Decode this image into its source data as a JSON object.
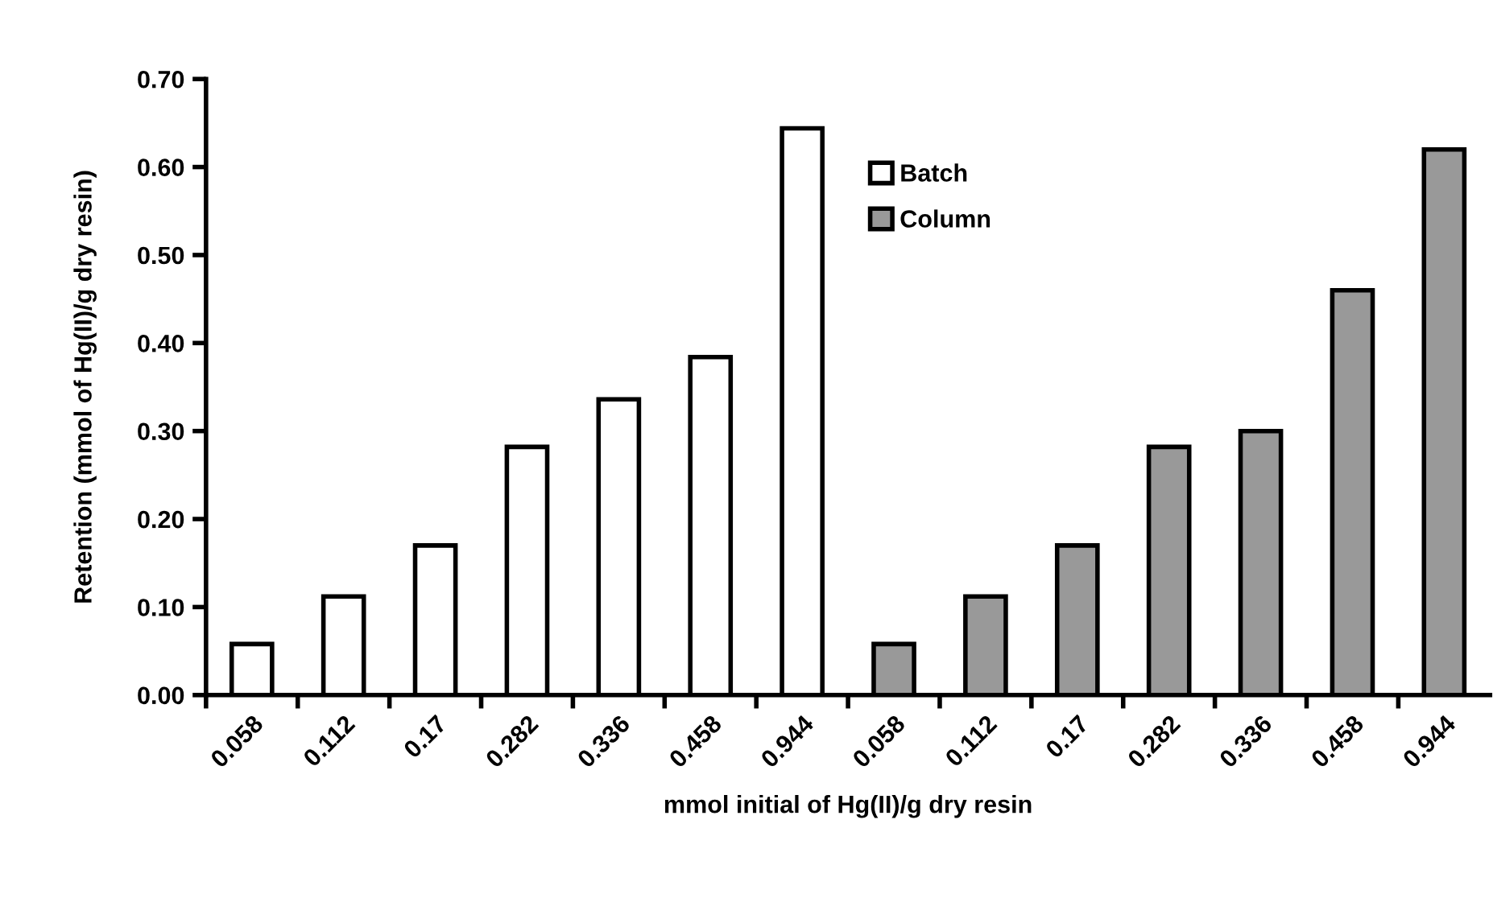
{
  "chart_data": {
    "type": "bar",
    "xlabel": "mmol initial of Hg(II)/g dry resin",
    "ylabel": "Retention (mmol of Hg(II)/g dry resin)",
    "categories": [
      "0.058",
      "0.112",
      "0.17",
      "0.282",
      "0.336",
      "0.458",
      "0.944",
      "0.058",
      "0.112",
      "0.17",
      "0.282",
      "0.336",
      "0.458",
      "0.944"
    ],
    "series": [
      {
        "name": "Batch",
        "color": "#ffffff",
        "values": [
          0.058,
          0.112,
          0.17,
          0.282,
          0.336,
          0.384,
          0.644,
          null,
          null,
          null,
          null,
          null,
          null,
          null
        ]
      },
      {
        "name": "Column",
        "color": "#999999",
        "values": [
          null,
          null,
          null,
          null,
          null,
          null,
          null,
          0.058,
          0.112,
          0.17,
          0.282,
          0.3,
          0.46,
          0.62
        ]
      }
    ],
    "ylim": [
      0,
      0.7
    ],
    "yticks": [
      {
        "value": 0,
        "label": "0.00"
      },
      {
        "value": 0.1,
        "label": "0.10"
      },
      {
        "value": 0.2,
        "label": "0.20"
      },
      {
        "value": 0.3,
        "label": "0.30"
      },
      {
        "value": 0.4,
        "label": "0.40"
      },
      {
        "value": 0.5,
        "label": "0.50"
      },
      {
        "value": 0.6,
        "label": "0.60"
      },
      {
        "value": 0.7,
        "label": "0.70"
      }
    ],
    "grid": false,
    "legend": "top"
  }
}
